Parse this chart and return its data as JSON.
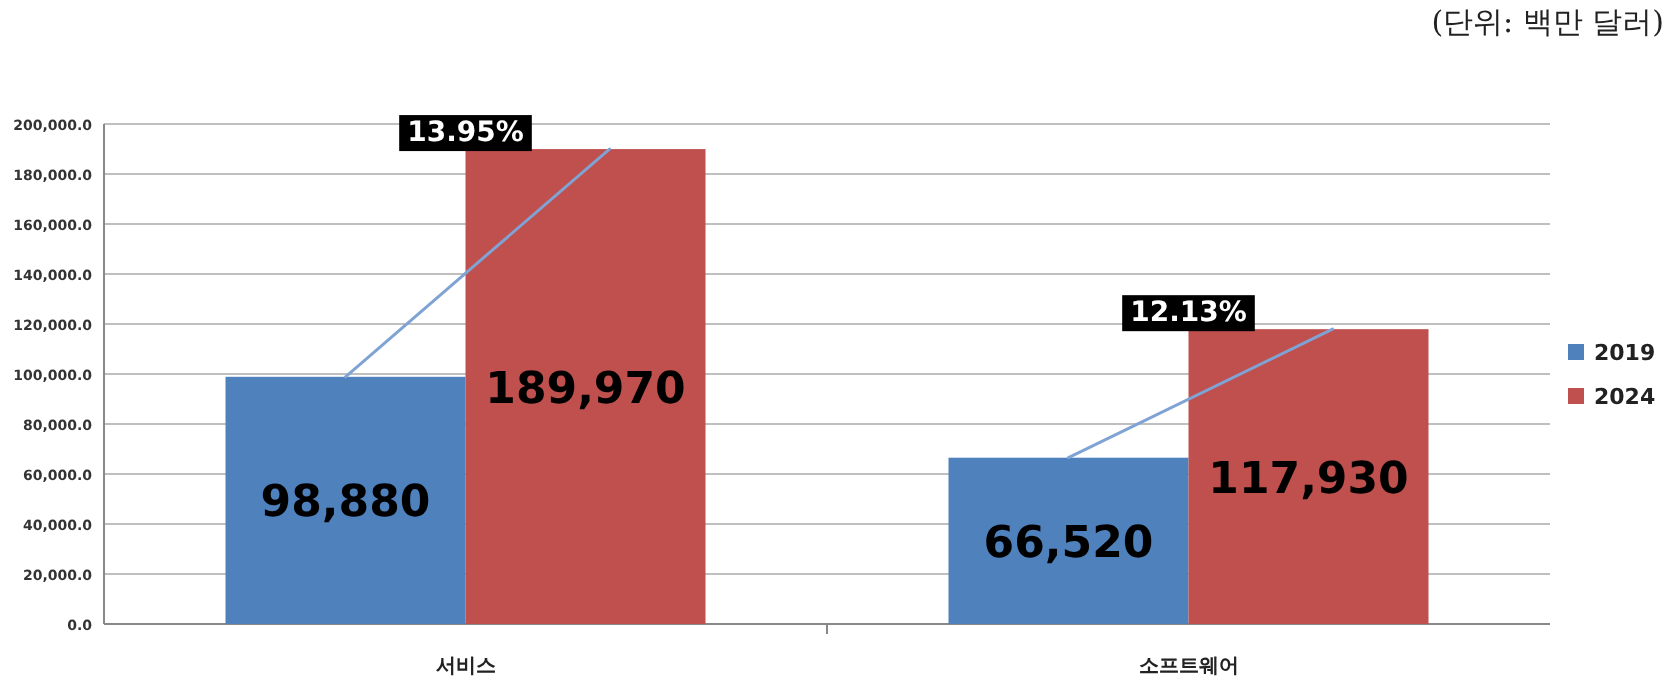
{
  "chart_data": {
    "type": "bar",
    "categories": [
      "서비스",
      "소프트웨어"
    ],
    "series": [
      {
        "name": "2019",
        "color": "#4f81bd",
        "values": [
          98880,
          66520
        ],
        "value_labels": [
          "98,880",
          "66,520"
        ]
      },
      {
        "name": "2024",
        "color": "#c0504d",
        "values": [
          189970,
          117930
        ],
        "value_labels": [
          "189,970",
          "117,930"
        ]
      }
    ],
    "ylim": [
      0,
      200000
    ],
    "yticks": [
      {
        "value": 0,
        "label": "0.0"
      },
      {
        "value": 20000,
        "label": "20,000.0"
      },
      {
        "value": 40000,
        "label": "40,000.0"
      },
      {
        "value": 60000,
        "label": "60,000.0"
      },
      {
        "value": 80000,
        "label": "80,000.0"
      },
      {
        "value": 100000,
        "label": "100,000.0"
      },
      {
        "value": 120000,
        "label": "120,000.0"
      },
      {
        "value": 140000,
        "label": "140,000.0"
      },
      {
        "value": 160000,
        "label": "160,000.0"
      },
      {
        "value": 180000,
        "label": "180,000.0"
      },
      {
        "value": 200000,
        "label": "200,000.0"
      }
    ],
    "grid": "y",
    "legend": "right",
    "annotations": [
      "(단위: 백만 달러)",
      {
        "text": "13.95%",
        "x": "서비스",
        "y": 189970
      },
      {
        "text": "12.13%",
        "x": "소프트웨어",
        "y": 117930
      }
    ]
  }
}
